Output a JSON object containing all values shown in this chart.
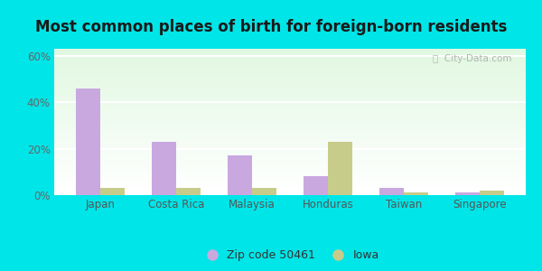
{
  "title": "Most common places of birth for foreign-born residents",
  "categories": [
    "Japan",
    "Costa Rica",
    "Malaysia",
    "Honduras",
    "Taiwan",
    "Singapore"
  ],
  "zip_values": [
    46,
    23,
    17,
    8,
    3,
    1
  ],
  "iowa_values": [
    3,
    3,
    3,
    23,
    1,
    2
  ],
  "zip_color": "#c9a8e0",
  "iowa_color": "#c8cc8a",
  "ylim": [
    0,
    63
  ],
  "yticks": [
    0,
    20,
    40,
    60
  ],
  "ytick_labels": [
    "0%",
    "20%",
    "40%",
    "60%"
  ],
  "background_outer": "#00e5e8",
  "legend_zip_label": "Zip code 50461",
  "legend_iowa_label": "Iowa",
  "bar_width": 0.32,
  "title_fontsize": 12,
  "watermark_text": "ⓘ  City-Data.com"
}
